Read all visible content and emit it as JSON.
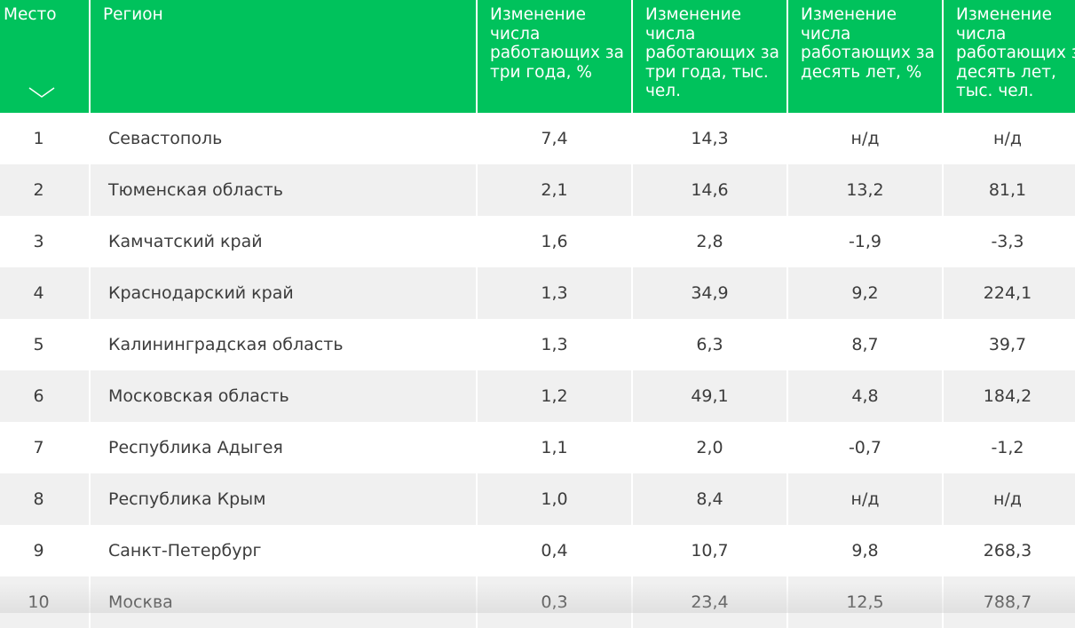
{
  "table": {
    "headers": {
      "place": "Место",
      "region": "Регион",
      "n1": "Изменение числа работающих за три года, %",
      "n2": "Изменение числа работающих за три года, тыс. чел.",
      "n3": "Изменение числа работающих за десять лет, %",
      "n4": "Изменение числа работающих за десять лет, тыс. чел."
    },
    "sort_icon": "chevron-down-icon",
    "header_color": "#00c25c",
    "rows": [
      {
        "place": "1",
        "region": "Севастополь",
        "n1": "7,4",
        "n2": "14,3",
        "n3": "н/д",
        "n4": "н/д"
      },
      {
        "place": "2",
        "region": "Тюменская область",
        "n1": "2,1",
        "n2": "14,6",
        "n3": "13,2",
        "n4": "81,1"
      },
      {
        "place": "3",
        "region": "Камчатский край",
        "n1": "1,6",
        "n2": "2,8",
        "n3": "-1,9",
        "n4": "-3,3"
      },
      {
        "place": "4",
        "region": "Краснодарский край",
        "n1": "1,3",
        "n2": "34,9",
        "n3": "9,2",
        "n4": "224,1"
      },
      {
        "place": "5",
        "region": "Калининградская область",
        "n1": "1,3",
        "n2": "6,3",
        "n3": "8,7",
        "n4": "39,7"
      },
      {
        "place": "6",
        "region": "Московская область",
        "n1": "1,2",
        "n2": "49,1",
        "n3": "4,8",
        "n4": "184,2"
      },
      {
        "place": "7",
        "region": "Республика Адыгея",
        "n1": "1,1",
        "n2": "2,0",
        "n3": "-0,7",
        "n4": "-1,2"
      },
      {
        "place": "8",
        "region": "Республика Крым",
        "n1": "1,0",
        "n2": "8,4",
        "n3": "н/д",
        "n4": "н/д"
      },
      {
        "place": "9",
        "region": "Санкт-Петербург",
        "n1": "0,4",
        "n2": "10,7",
        "n3": "9,8",
        "n4": "268,3"
      },
      {
        "place": "10",
        "region": "Москва",
        "n1": "0,3",
        "n2": "23,4",
        "n3": "12,5",
        "n4": "788,7"
      }
    ]
  }
}
